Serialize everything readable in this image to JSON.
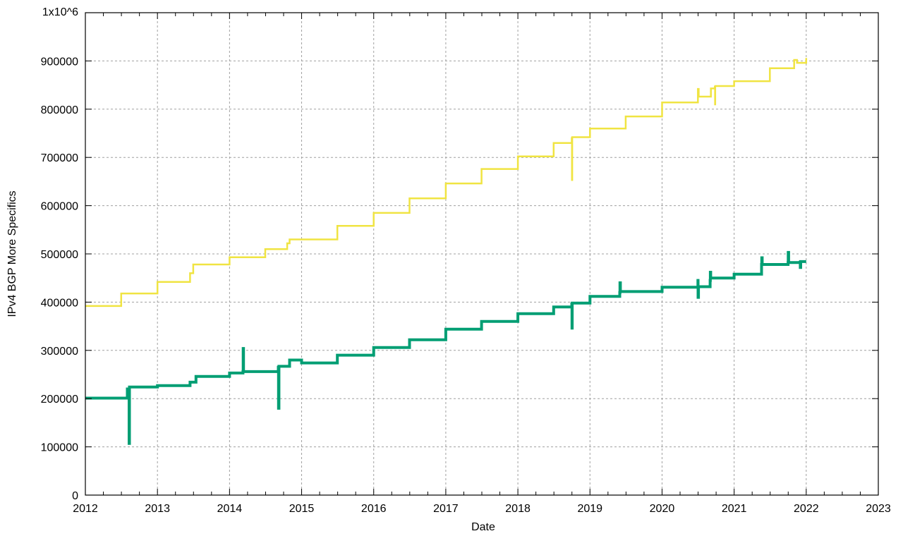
{
  "chart_data": {
    "type": "line",
    "title": "",
    "xlabel": "Date",
    "ylabel": "IPv4 BGP More Specifics",
    "xlim": [
      "2012-01-01",
      "2023-01-01"
    ],
    "ylim": [
      0,
      1000000
    ],
    "x_tick_labels": [
      "2012",
      "2013",
      "2014",
      "2015",
      "2016",
      "2017",
      "2018",
      "2019",
      "2020",
      "2021",
      "2022",
      "2023"
    ],
    "y_ticks": [
      0,
      100000,
      200000,
      300000,
      400000,
      500000,
      600000,
      700000,
      800000,
      900000,
      1000000
    ],
    "y_tick_labels": [
      "0",
      "100000",
      "200000",
      "300000",
      "400000",
      "500000",
      "600000",
      "700000",
      "800000",
      "900000",
      "1x10^6"
    ],
    "grid": true,
    "legend": "none",
    "series": [
      {
        "color": "#f0e442",
        "points": [
          [
            "2012-01-01",
            392000
          ],
          [
            "2012-07-01",
            418000
          ],
          [
            "2013-01-01",
            442000
          ],
          [
            "2013-06-15",
            460000
          ],
          [
            "2013-07-01",
            478000
          ],
          [
            "2014-01-01",
            493000
          ],
          [
            "2014-07-01",
            510000
          ],
          [
            "2014-10-20",
            522000
          ],
          [
            "2014-11-01",
            530000
          ],
          [
            "2015-01-01",
            530000
          ],
          [
            "2015-07-01",
            558000
          ],
          [
            "2016-01-01",
            585000
          ],
          [
            "2016-07-01",
            615000
          ],
          [
            "2017-01-01",
            646000
          ],
          [
            "2017-07-01",
            676000
          ],
          [
            "2018-01-01",
            702000
          ],
          [
            "2018-07-01",
            730000
          ],
          [
            "2018-10-01",
            740000
          ],
          [
            "2018-10-02",
            653000
          ],
          [
            "2018-10-03",
            742000
          ],
          [
            "2019-01-01",
            760000
          ],
          [
            "2019-07-01",
            785000
          ],
          [
            "2020-01-01",
            814000
          ],
          [
            "2020-07-01",
            842000
          ],
          [
            "2020-07-05",
            826000
          ],
          [
            "2020-09-01",
            826000
          ],
          [
            "2020-09-05",
            843000
          ],
          [
            "2020-09-25",
            846000
          ],
          [
            "2020-09-26",
            810000
          ],
          [
            "2020-09-27",
            848000
          ],
          [
            "2021-01-01",
            858000
          ],
          [
            "2021-07-01",
            885000
          ],
          [
            "2021-11-01",
            902000
          ],
          [
            "2021-11-15",
            896000
          ],
          [
            "2022-01-01",
            906000
          ]
        ]
      },
      {
        "color": "#009e73",
        "points": [
          [
            "2012-01-01",
            201000
          ],
          [
            "2012-08-01",
            220000
          ],
          [
            "2012-08-10",
            107000
          ],
          [
            "2012-08-12",
            224000
          ],
          [
            "2013-01-01",
            227000
          ],
          [
            "2013-06-15",
            234000
          ],
          [
            "2013-07-15",
            246000
          ],
          [
            "2014-01-01",
            253000
          ],
          [
            "2014-03-10",
            256000
          ],
          [
            "2014-03-11",
            304000
          ],
          [
            "2014-03-13",
            256000
          ],
          [
            "2014-09-05",
            265000
          ],
          [
            "2014-09-06",
            180000
          ],
          [
            "2014-09-08",
            267000
          ],
          [
            "2014-11-01",
            280000
          ],
          [
            "2015-01-01",
            274000
          ],
          [
            "2015-07-01",
            290000
          ],
          [
            "2016-01-01",
            306000
          ],
          [
            "2016-07-01",
            322000
          ],
          [
            "2017-01-01",
            344000
          ],
          [
            "2017-07-01",
            360000
          ],
          [
            "2018-01-01",
            376000
          ],
          [
            "2018-07-01",
            390000
          ],
          [
            "2018-10-01",
            396000
          ],
          [
            "2018-10-02",
            346000
          ],
          [
            "2018-10-03",
            398000
          ],
          [
            "2019-01-01",
            412000
          ],
          [
            "2019-06-01",
            420000
          ],
          [
            "2019-06-02",
            440000
          ],
          [
            "2019-06-04",
            422000
          ],
          [
            "2020-01-01",
            431000
          ],
          [
            "2020-07-01",
            445000
          ],
          [
            "2020-07-02",
            410000
          ],
          [
            "2020-07-04",
            432000
          ],
          [
            "2020-09-01",
            445000
          ],
          [
            "2020-09-02",
            462000
          ],
          [
            "2020-09-04",
            450000
          ],
          [
            "2021-01-01",
            458000
          ],
          [
            "2021-05-20",
            478000
          ],
          [
            "2021-05-21",
            492000
          ],
          [
            "2021-05-23",
            478000
          ],
          [
            "2021-10-01",
            482000
          ],
          [
            "2021-10-02",
            503000
          ],
          [
            "2021-10-04",
            482000
          ],
          [
            "2021-12-01",
            483000
          ],
          [
            "2021-12-02",
            472000
          ],
          [
            "2021-12-04",
            484000
          ],
          [
            "2022-01-01",
            484000
          ]
        ]
      }
    ]
  }
}
